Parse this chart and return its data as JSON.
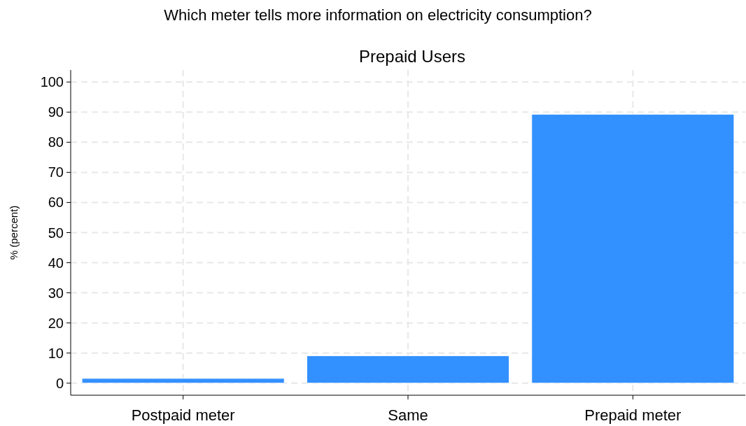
{
  "chart_data": {
    "type": "bar",
    "title": "Which meter tells more information on electricity consumption?",
    "subtitle": "Prepaid Users",
    "ylabel": "% (percent)",
    "categories": [
      "Postpaid meter",
      "Same",
      "Prepaid meter"
    ],
    "values": [
      1.6,
      9.1,
      89.3
    ],
    "color": "#3390ff",
    "ylim": [
      -4,
      104
    ],
    "yticks": [
      0,
      10,
      20,
      30,
      40,
      50,
      60,
      70,
      80,
      90,
      100
    ],
    "grid": true
  }
}
